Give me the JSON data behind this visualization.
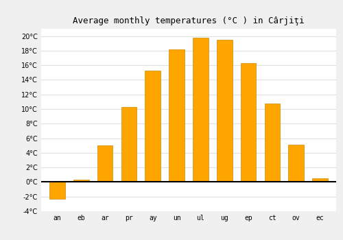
{
  "title": "Average monthly temperatures (°C ) in Cârjiţi",
  "months": [
    "an",
    "eb",
    "ar",
    "pr",
    "ay",
    "un",
    "ul",
    "ug",
    "ep",
    "ct",
    "ov",
    "ec"
  ],
  "values": [
    -2.3,
    0.3,
    5.0,
    10.3,
    15.3,
    18.2,
    19.8,
    19.5,
    16.3,
    10.8,
    5.1,
    0.5
  ],
  "bar_color": "#FFA500",
  "bar_edge_color": "#CC8800",
  "background_color": "#F0F0F0",
  "plot_bg_color": "#FFFFFF",
  "grid_color": "#E0E0E0",
  "zero_line_color": "#000000",
  "ylim": [
    -4,
    21
  ],
  "yticks": [
    -4,
    -2,
    0,
    2,
    4,
    6,
    8,
    10,
    12,
    14,
    16,
    18,
    20
  ],
  "title_fontsize": 9,
  "tick_fontsize": 7,
  "figsize": [
    5.0,
    3.5
  ],
  "dpi": 100
}
